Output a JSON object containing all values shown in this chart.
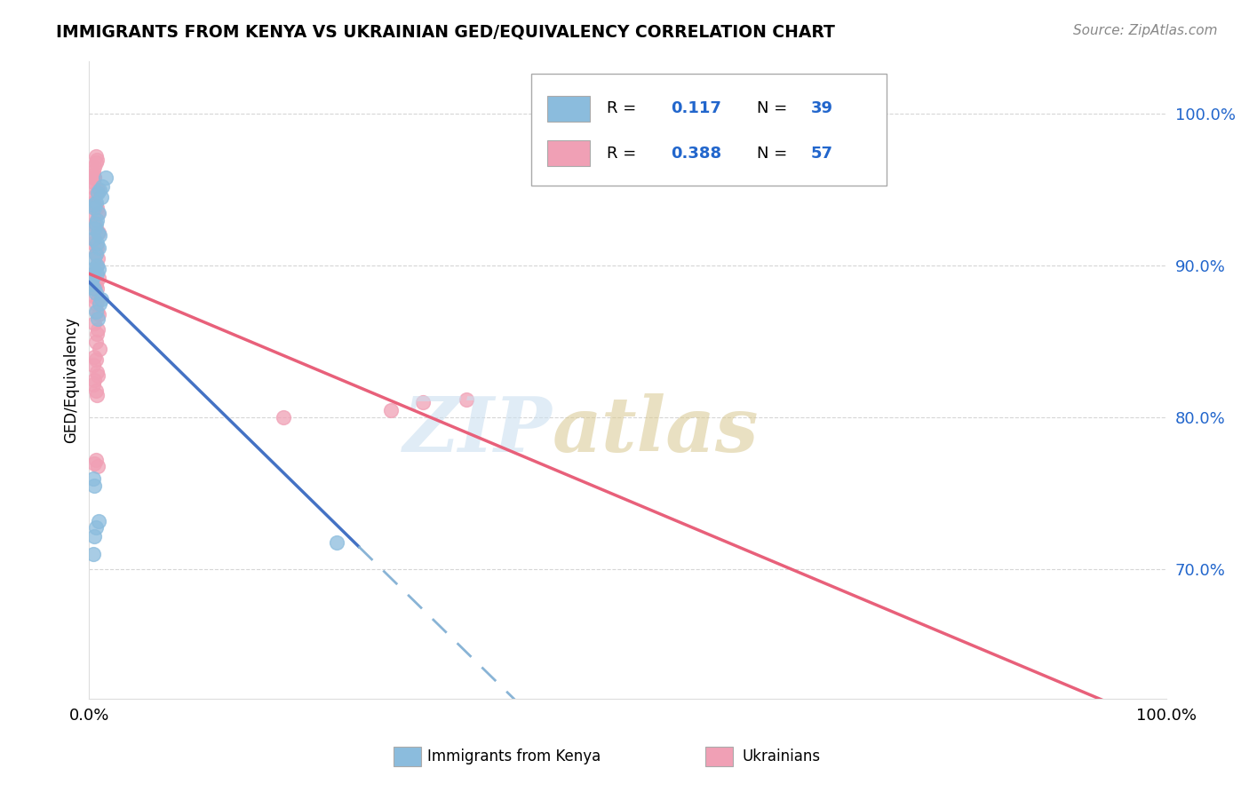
{
  "title": "IMMIGRANTS FROM KENYA VS UKRAINIAN GED/EQUIVALENCY CORRELATION CHART",
  "source": "Source: ZipAtlas.com",
  "ylabel": "GED/Equivalency",
  "kenya_R": 0.117,
  "kenya_N": 39,
  "ukraine_R": 0.388,
  "ukraine_N": 57,
  "legend_entries": [
    "Immigrants from Kenya",
    "Ukrainians"
  ],
  "kenya_color": "#8bbcdd",
  "ukraine_color": "#f0a0b5",
  "kenya_line_color": "#4472c4",
  "ukraine_line_color": "#e8607a",
  "dashed_line_color": "#89b4d6",
  "legend_R_color": "#2266cc",
  "watermark_zip_color": "#cce0f0",
  "watermark_atlas_color": "#d8c890",
  "xmin": 0.0,
  "xmax": 1.0,
  "ymin": 0.615,
  "ymax": 1.035,
  "ytick_vals": [
    0.7,
    0.8,
    0.9,
    1.0
  ],
  "ytick_labels": [
    "70.0%",
    "80.0%",
    "90.0%",
    "100.0%"
  ],
  "kenya_x": [
    0.01,
    0.015,
    0.008,
    0.006,
    0.004,
    0.012,
    0.009,
    0.007,
    0.005,
    0.011,
    0.006,
    0.008,
    0.005,
    0.004,
    0.007,
    0.006,
    0.009,
    0.005,
    0.004,
    0.01,
    0.003,
    0.004,
    0.002,
    0.007,
    0.005,
    0.009,
    0.007,
    0.006,
    0.011,
    0.004,
    0.006,
    0.23,
    0.005,
    0.009,
    0.01,
    0.006,
    0.008,
    0.005,
    0.004
  ],
  "kenya_y": [
    0.95,
    0.958,
    0.948,
    0.942,
    0.94,
    0.952,
    0.935,
    0.93,
    0.938,
    0.945,
    0.928,
    0.922,
    0.925,
    0.918,
    0.915,
    0.908,
    0.912,
    0.905,
    0.898,
    0.92,
    0.892,
    0.895,
    0.888,
    0.9,
    0.885,
    0.898,
    0.895,
    0.882,
    0.878,
    0.71,
    0.728,
    0.718,
    0.722,
    0.732,
    0.875,
    0.87,
    0.865,
    0.755,
    0.76
  ],
  "ukraine_x": [
    0.004,
    0.005,
    0.006,
    0.004,
    0.007,
    0.005,
    0.004,
    0.006,
    0.003,
    0.005,
    0.007,
    0.004,
    0.008,
    0.005,
    0.006,
    0.007,
    0.004,
    0.005,
    0.008,
    0.006,
    0.009,
    0.005,
    0.004,
    0.007,
    0.006,
    0.008,
    0.007,
    0.005,
    0.009,
    0.006,
    0.007,
    0.005,
    0.008,
    0.006,
    0.007,
    0.009,
    0.005,
    0.008,
    0.007,
    0.006,
    0.01,
    0.005,
    0.006,
    0.004,
    0.007,
    0.008,
    0.005,
    0.004,
    0.006,
    0.007,
    0.18,
    0.31,
    0.35,
    0.28,
    0.008,
    0.006,
    0.005
  ],
  "ukraine_y": [
    0.96,
    0.965,
    0.968,
    0.962,
    0.97,
    0.958,
    0.955,
    0.972,
    0.952,
    0.958,
    0.948,
    0.942,
    0.95,
    0.945,
    0.94,
    0.938,
    0.932,
    0.928,
    0.935,
    0.925,
    0.922,
    0.918,
    0.915,
    0.912,
    0.908,
    0.905,
    0.9,
    0.895,
    0.892,
    0.888,
    0.885,
    0.88,
    0.878,
    0.875,
    0.87,
    0.868,
    0.862,
    0.858,
    0.855,
    0.85,
    0.845,
    0.84,
    0.838,
    0.835,
    0.83,
    0.828,
    0.825,
    0.822,
    0.818,
    0.815,
    0.8,
    0.81,
    0.812,
    0.805,
    0.768,
    0.772,
    0.77
  ]
}
